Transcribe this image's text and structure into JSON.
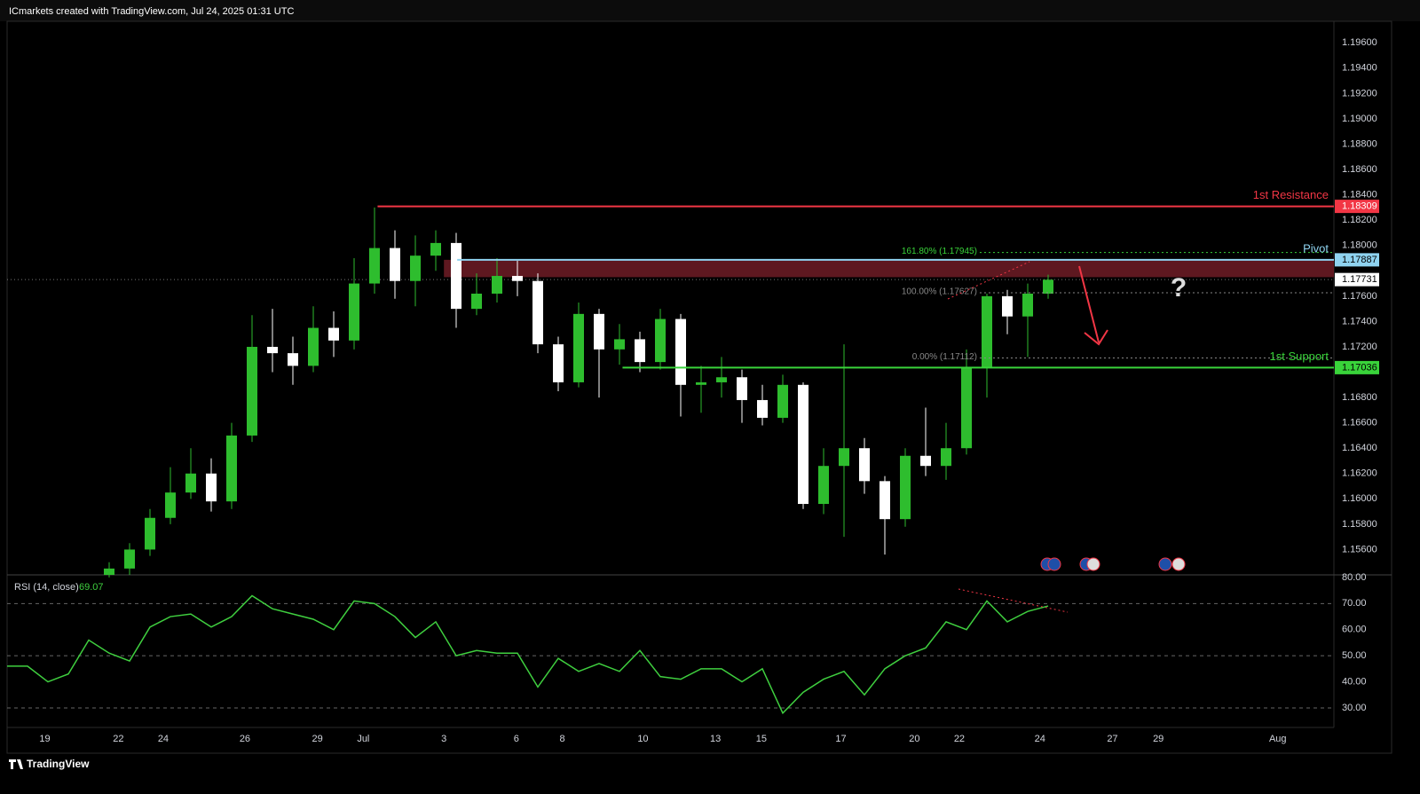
{
  "header": {
    "title": "ICmarkets created with TradingView.com, Jul 24, 2025 01:31 UTC"
  },
  "footer": {
    "brand": "TradingView"
  },
  "chart_data": [
    {
      "type": "candlestick",
      "xlim": [
        0,
        130
      ],
      "ylim": [
        1.154,
        1.1977
      ],
      "xticks": [
        {
          "value": 3.7,
          "label": "19"
        },
        {
          "value": 10.9,
          "label": "22"
        },
        {
          "value": 15.3,
          "label": "24"
        },
        {
          "value": 23.3,
          "label": "26"
        },
        {
          "value": 30.4,
          "label": "29"
        },
        {
          "value": 34.9,
          "label": "Jul"
        },
        {
          "value": 42.8,
          "label": "3"
        },
        {
          "value": 49.9,
          "label": "6"
        },
        {
          "value": 54.4,
          "label": "8"
        },
        {
          "value": 62.3,
          "label": "10"
        },
        {
          "value": 69.4,
          "label": "13"
        },
        {
          "value": 73.9,
          "label": "15"
        },
        {
          "value": 81.7,
          "label": "17"
        },
        {
          "value": 88.9,
          "label": "20"
        },
        {
          "value": 93.3,
          "label": "22"
        },
        {
          "value": 101.2,
          "label": "24"
        },
        {
          "value": 108.3,
          "label": "27"
        },
        {
          "value": 112.8,
          "label": "29"
        },
        {
          "value": 124.5,
          "label": "Aug"
        }
      ],
      "yticks": [
        {
          "value": 1.196,
          "label": "1.19600"
        },
        {
          "value": 1.194,
          "label": "1.19400"
        },
        {
          "value": 1.192,
          "label": "1.19200"
        },
        {
          "value": 1.19,
          "label": "1.19000"
        },
        {
          "value": 1.188,
          "label": "1.18800"
        },
        {
          "value": 1.186,
          "label": "1.18600"
        },
        {
          "value": 1.184,
          "label": "1.18400"
        },
        {
          "value": 1.182,
          "label": "1.18200"
        },
        {
          "value": 1.18,
          "label": "1.18000"
        },
        {
          "value": 1.176,
          "label": "1.17600"
        },
        {
          "value": 1.174,
          "label": "1.17400"
        },
        {
          "value": 1.172,
          "label": "1.17200"
        },
        {
          "value": 1.168,
          "label": "1.16800"
        },
        {
          "value": 1.166,
          "label": "1.16600"
        },
        {
          "value": 1.164,
          "label": "1.16400"
        },
        {
          "value": 1.162,
          "label": "1.16200"
        },
        {
          "value": 1.16,
          "label": "1.16000"
        },
        {
          "value": 1.158,
          "label": "1.15800"
        },
        {
          "value": 1.156,
          "label": "1.15600"
        }
      ],
      "up_color": "#2ebd2e",
      "down_color": "#ffffff",
      "candles": {
        "x": [
          10,
          12,
          14,
          16,
          18,
          20,
          22,
          24,
          26,
          28,
          30,
          32,
          34,
          36,
          38,
          40,
          42,
          44,
          46,
          48,
          50,
          52,
          54,
          56,
          58,
          60,
          62,
          64,
          66,
          68,
          70,
          72,
          74,
          76,
          78,
          80,
          82,
          84,
          86,
          88,
          90,
          92,
          94,
          96,
          98,
          100,
          102
        ],
        "open": [
          1.154,
          1.1545,
          1.156,
          1.1585,
          1.1605,
          1.162,
          1.1598,
          1.165,
          1.172,
          1.1715,
          1.1705,
          1.1735,
          1.1725,
          1.177,
          1.1798,
          1.1772,
          1.1792,
          1.1802,
          1.175,
          1.1762,
          1.1776,
          1.1772,
          1.1722,
          1.1692,
          1.1746,
          1.1718,
          1.1726,
          1.1708,
          1.1742,
          1.169,
          1.1692,
          1.1696,
          1.1678,
          1.1664,
          1.169,
          1.1596,
          1.1626,
          1.164,
          1.1614,
          1.1584,
          1.1634,
          1.1626,
          1.164,
          1.1704,
          1.176,
          1.1744,
          1.1762
        ],
        "high": [
          1.155,
          1.1565,
          1.1592,
          1.1625,
          1.164,
          1.1632,
          1.166,
          1.1745,
          1.175,
          1.1728,
          1.1752,
          1.1748,
          1.179,
          1.183,
          1.1812,
          1.1808,
          1.1812,
          1.181,
          1.1778,
          1.179,
          1.1788,
          1.1778,
          1.1728,
          1.1755,
          1.175,
          1.1738,
          1.1732,
          1.175,
          1.1746,
          1.1705,
          1.1712,
          1.1702,
          1.169,
          1.1698,
          1.1692,
          1.164,
          1.1722,
          1.1648,
          1.1618,
          1.164,
          1.1672,
          1.166,
          1.1718,
          1.1762,
          1.1765,
          1.177,
          1.1777
        ],
        "low": [
          1.1538,
          1.154,
          1.1555,
          1.158,
          1.16,
          1.159,
          1.1592,
          1.1645,
          1.17,
          1.169,
          1.17,
          1.1712,
          1.1718,
          1.1762,
          1.1758,
          1.1752,
          1.178,
          1.1735,
          1.1745,
          1.1755,
          1.176,
          1.1715,
          1.1685,
          1.1688,
          1.168,
          1.1706,
          1.17,
          1.1702,
          1.1665,
          1.1668,
          1.168,
          1.166,
          1.1658,
          1.166,
          1.1592,
          1.1588,
          1.157,
          1.1604,
          1.1556,
          1.1578,
          1.1618,
          1.1615,
          1.1635,
          1.168,
          1.173,
          1.1712,
          1.1758
        ],
        "close": [
          1.1545,
          1.156,
          1.1585,
          1.1605,
          1.162,
          1.1598,
          1.165,
          1.172,
          1.1715,
          1.1705,
          1.1735,
          1.1725,
          1.177,
          1.1798,
          1.1772,
          1.1792,
          1.1802,
          1.175,
          1.1762,
          1.1776,
          1.1772,
          1.1722,
          1.1692,
          1.1746,
          1.1718,
          1.1726,
          1.1708,
          1.1742,
          1.169,
          1.1692,
          1.1696,
          1.1678,
          1.1664,
          1.169,
          1.1596,
          1.1626,
          1.164,
          1.1614,
          1.1584,
          1.1634,
          1.1626,
          1.164,
          1.1704,
          1.176,
          1.1744,
          1.1762,
          1.1773
        ]
      },
      "zone": {
        "x_start": 42.8,
        "top": 1.17887,
        "bottom": 1.1775,
        "color": "#6e1c26"
      },
      "levels": [
        {
          "name": "1st Resistance",
          "value": 1.18309,
          "x_start": 36.3,
          "color": "#f23645",
          "tag_text_color": "#ffffff"
        },
        {
          "name": "Pivot",
          "value": 1.17887,
          "x_start": 44.1,
          "color": "#8fd3f0",
          "tag_text_color": "#000000"
        },
        {
          "name": "1st Support",
          "value": 1.17036,
          "x_start": 60.3,
          "color": "#39d33a",
          "tag_text_color": "#000000"
        }
      ],
      "current_price": {
        "value": 1.17731
      },
      "fib_levels": [
        {
          "label": "161.80% (1.17945)",
          "value": 1.17945,
          "x_start": 95.3,
          "color": "#39d33a"
        },
        {
          "label": "100.00% (1.17627)",
          "value": 1.17627,
          "x_start": 95.3,
          "color": "#888888"
        },
        {
          "label": "0.00% (1.17112)",
          "value": 1.17112,
          "x_start": 95.3,
          "color": "#888888"
        }
      ],
      "annotation": "?"
    },
    {
      "type": "line",
      "title": "RSI (14, close)",
      "xlim": [
        0,
        130
      ],
      "ylim": [
        22.5,
        81
      ],
      "yticks": [
        {
          "value": 80,
          "label": "80.00"
        },
        {
          "value": 70,
          "label": "70.00"
        },
        {
          "value": 60,
          "label": "60.00"
        },
        {
          "value": 50,
          "label": "50.00"
        },
        {
          "value": 40,
          "label": "40.00"
        },
        {
          "value": 30,
          "label": "30.00"
        }
      ],
      "bands": [
        70,
        50,
        30
      ],
      "x": [
        0,
        2,
        4,
        6,
        8,
        10,
        12,
        14,
        16,
        18,
        20,
        22,
        24,
        26,
        28,
        30,
        32,
        34,
        36,
        38,
        40,
        42,
        44,
        46,
        48,
        50,
        52,
        54,
        56,
        58,
        60,
        62,
        64,
        66,
        68,
        70,
        72,
        74,
        76,
        78,
        80,
        82,
        84,
        86,
        88,
        90,
        92,
        94,
        96,
        98,
        100,
        102
      ],
      "series": [
        {
          "name": "RSI",
          "color": "#3fcf3f",
          "values": [
            46,
            46,
            40,
            43,
            56,
            51,
            48,
            61,
            65,
            66,
            61,
            65,
            73,
            68,
            66,
            64,
            60,
            71,
            70,
            65,
            57,
            63,
            50,
            52,
            51,
            51,
            38,
            49,
            44,
            47,
            44,
            52,
            42,
            41,
            45,
            45,
            40,
            45,
            28,
            36,
            41,
            44,
            35,
            45,
            50,
            53,
            63,
            60,
            71,
            63,
            67,
            69.07
          ]
        }
      ]
    }
  ]
}
